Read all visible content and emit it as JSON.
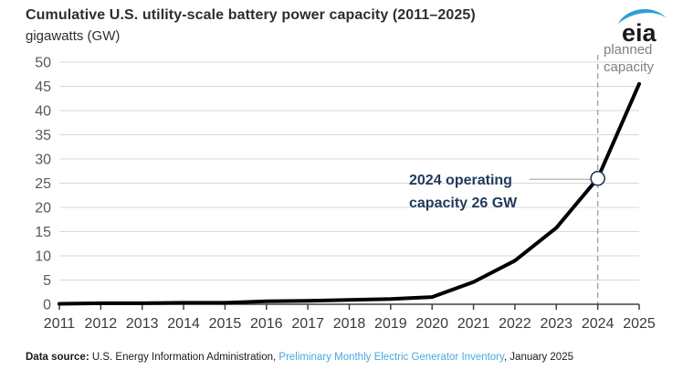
{
  "logo": {
    "text": "eia"
  },
  "chart_data": {
    "type": "line",
    "title": "Cumulative U.S. utility-scale battery power capacity (2011–2025)",
    "subtitle": "gigawatts (GW)",
    "xlabel": "",
    "ylabel": "gigawatts (GW)",
    "x": [
      2011,
      2012,
      2013,
      2014,
      2015,
      2016,
      2017,
      2018,
      2019,
      2020,
      2021,
      2022,
      2023,
      2024,
      2025
    ],
    "values": [
      0.1,
      0.2,
      0.2,
      0.3,
      0.3,
      0.6,
      0.7,
      0.9,
      1.1,
      1.5,
      4.6,
      9.0,
      15.8,
      26.0,
      45.5
    ],
    "ylim": [
      0,
      50
    ],
    "ytick_step": 5,
    "grid": "horizontal-only",
    "legend": "none",
    "marker": {
      "year": 2024,
      "value": 26
    },
    "dashed_line_year": 2024,
    "annotation": {
      "line1": "2024 operating",
      "line2": "capacity 26 GW"
    },
    "planned_label": {
      "line1": "planned",
      "line2": "capacity"
    },
    "colors": {
      "line": "#000000",
      "grid": "#d9d9d9",
      "axis": "#404040",
      "y_tick_label": "#595959",
      "x_tick_label": "#3b3b3b",
      "dashed_line": "#a6a6a6",
      "leader_line": "#a6a6a6",
      "marker_stroke": "#1f3a5c",
      "annotation_text": "#1f3a5c",
      "planned_label_text": "#808080",
      "link_blue": "#4aa8dc",
      "logo_swoosh": "#2e9fd4"
    }
  },
  "footer": {
    "prefix": "Data source:",
    "org": " U.S. Energy Information Administration, ",
    "link": "Preliminary Monthly Electric Generator Inventory",
    "suffix": ", January 2025"
  }
}
